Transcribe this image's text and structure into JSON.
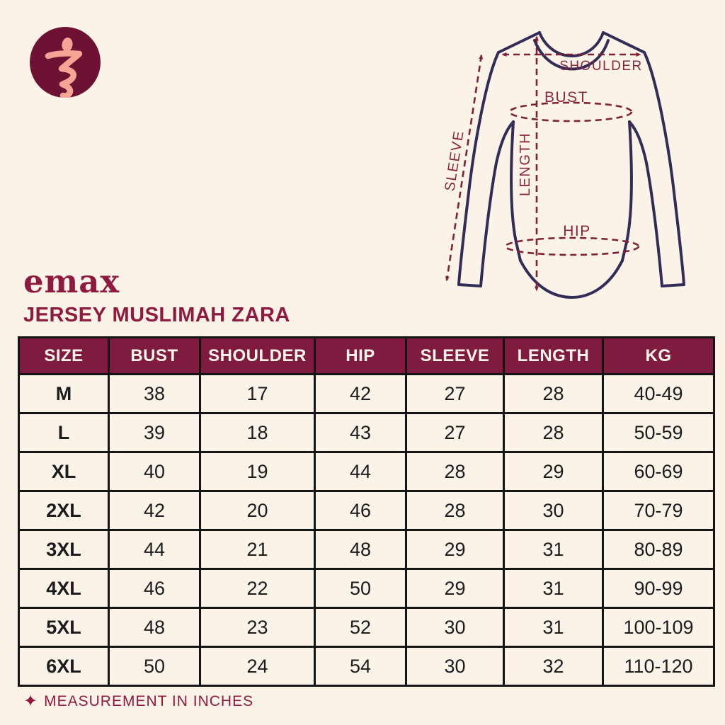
{
  "page": {
    "background_color": "#fbf3e7",
    "accent_color": "#8e1a40"
  },
  "logo": {
    "description": "emax brand mark, abstract figure glyph in circle",
    "circle_color": "#6d1232",
    "glyph_color": "#f6a496"
  },
  "brand": {
    "wordmark": "emax",
    "product_title": "JERSEY MUSLIMAH ZARA"
  },
  "diagram": {
    "description": "long-sleeve jersey outline with dashed measurement guides",
    "outline_color": "#322c57",
    "measure_color": "#7f2238",
    "label_color": "#8a2740",
    "labels": {
      "shoulder": "SHOULDER",
      "bust": "BUST",
      "length": "LENGTH",
      "hip": "HIP",
      "sleeve": "SLEEVE"
    }
  },
  "chart_data": {
    "type": "table",
    "title": "JERSEY MUSLIMAH ZARA",
    "unit_note": "MEASUREMENT IN INCHES",
    "columns": [
      "SIZE",
      "BUST",
      "SHOULDER",
      "HIP",
      "SLEEVE",
      "LENGTH",
      "KG"
    ],
    "rows": [
      [
        "M",
        "38",
        "17",
        "42",
        "27",
        "28",
        "40-49"
      ],
      [
        "L",
        "39",
        "18",
        "43",
        "27",
        "28",
        "50-59"
      ],
      [
        "XL",
        "40",
        "19",
        "44",
        "28",
        "29",
        "60-69"
      ],
      [
        "2XL",
        "42",
        "20",
        "46",
        "28",
        "30",
        "70-79"
      ],
      [
        "3XL",
        "44",
        "21",
        "48",
        "29",
        "31",
        "80-89"
      ],
      [
        "4XL",
        "46",
        "22",
        "50",
        "29",
        "31",
        "90-99"
      ],
      [
        "5XL",
        "48",
        "23",
        "52",
        "30",
        "31",
        "100-109"
      ],
      [
        "6XL",
        "50",
        "24",
        "54",
        "30",
        "32",
        "110-120"
      ]
    ],
    "header_bg": "#7e1b3e",
    "header_text_color": "#fdf5ec"
  },
  "footer": {
    "star_icon": "✦",
    "note": "MEASUREMENT IN INCHES"
  }
}
